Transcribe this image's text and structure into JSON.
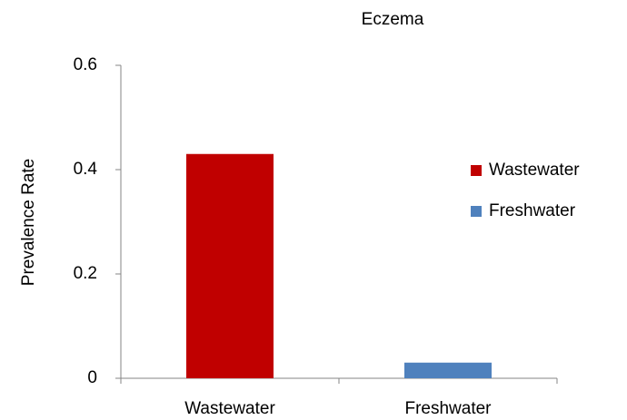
{
  "chart_data": {
    "type": "bar",
    "title": "Eczema",
    "y_label": "Prevalence Rate",
    "categories": [
      "Wastewater",
      "Freshwater"
    ],
    "values": [
      0.43,
      0.03
    ],
    "colors": [
      "#c00000",
      "#4f81bd"
    ],
    "ylim": [
      0,
      0.6
    ],
    "yticks": [
      0,
      0.2,
      0.4,
      0.6
    ],
    "grid": false,
    "legend": "right"
  }
}
